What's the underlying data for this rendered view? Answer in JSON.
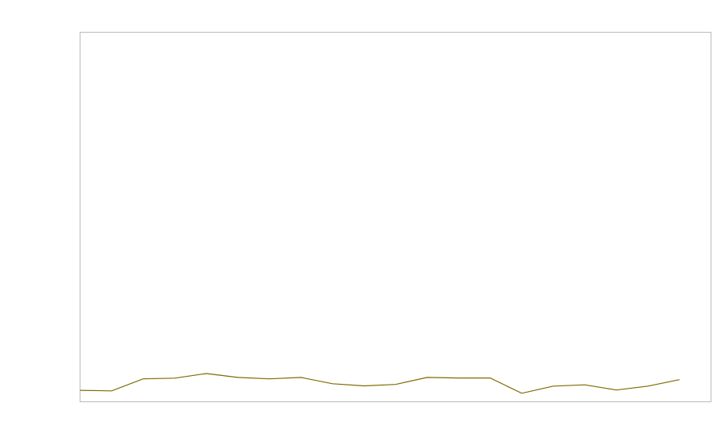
{
  "chart_data": {
    "type": "line",
    "title": "",
    "xlabel": "",
    "ylabel": "",
    "x": [
      0,
      1,
      2,
      3,
      4,
      5,
      6,
      7,
      8,
      9,
      10,
      11,
      12,
      13,
      14,
      15,
      16,
      17,
      18,
      19
    ],
    "series": [
      {
        "values": [
          3.1,
          2.95,
          6.2,
          6.4,
          7.65,
          6.6,
          6.2,
          6.6,
          4.9,
          4.3,
          4.7,
          6.6,
          6.45,
          6.45,
          2.3,
          4.25,
          4.6,
          3.2,
          4.25,
          6.0
        ],
        "color": "#7f6a00"
      }
    ],
    "xlim": [
      0,
      20
    ],
    "ylim": [
      0,
      100
    ],
    "grid": false,
    "legend": "none",
    "frame_color": "#bbbbbb"
  }
}
